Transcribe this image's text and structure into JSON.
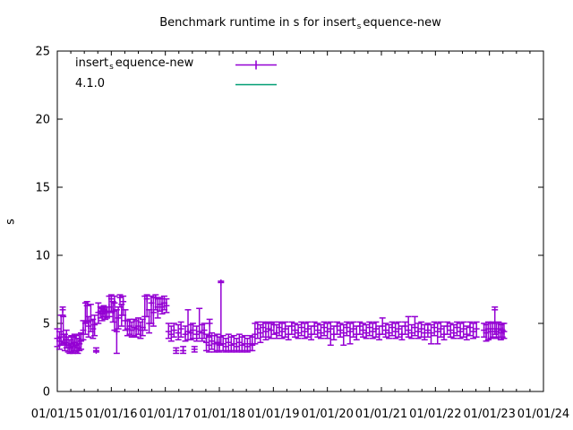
{
  "title": {
    "prefix": "Benchmark runtime in s for insert",
    "subscript": "s",
    "suffix": "equence-new"
  },
  "ylabel": "s",
  "legend": {
    "entries": [
      {
        "prefix": "insert",
        "subscript": "s",
        "suffix": "equence-new",
        "color": "#9400D3",
        "style": "errorbar"
      },
      {
        "prefix": "4.1.0",
        "subscript": "",
        "suffix": "",
        "color": "#009E73",
        "style": "line"
      }
    ]
  },
  "colors": {
    "series": "#9400D3",
    "reference": "#009E73",
    "axis": "#000000",
    "background": "#FFFFFF"
  },
  "chart_data": {
    "type": "scatter",
    "subtype": "yerrorbars",
    "title": "Benchmark runtime in s for insert_sequence-new",
    "xlabel": "",
    "ylabel": "s",
    "grid": false,
    "legend_position": "top-left",
    "xlim": [
      2015,
      2024
    ],
    "ylim": [
      0,
      25
    ],
    "yticks": [
      0,
      5,
      10,
      15,
      20,
      25
    ],
    "x_minor_tick_interval_years": 0.25,
    "xticks": [
      {
        "year": 2015,
        "label": "01/01/15"
      },
      {
        "year": 2016,
        "label": "01/01/16"
      },
      {
        "year": 2017,
        "label": "01/01/17"
      },
      {
        "year": 2018,
        "label": "01/01/18"
      },
      {
        "year": 2019,
        "label": "01/01/19"
      },
      {
        "year": 2020,
        "label": "01/01/20"
      },
      {
        "year": 2021,
        "label": "01/01/21"
      },
      {
        "year": 2022,
        "label": "01/01/22"
      },
      {
        "year": 2023,
        "label": "01/01/23"
      },
      {
        "year": 2024,
        "label": "01/01/24"
      }
    ],
    "series": [
      {
        "name": "insert_sequence-new",
        "color": "#9400D3",
        "style": "yerrorbars",
        "points_format": [
          "x_decimal_year",
          "y_seconds",
          "err_low",
          "err_high"
        ],
        "points": [
          [
            2015.0,
            3.9,
            3.3,
            4.6
          ],
          [
            2015.04,
            3.7,
            3.1,
            4.4
          ],
          [
            2015.07,
            4.0,
            3.4,
            5.6
          ],
          [
            2015.1,
            6.0,
            5.6,
            6.2
          ],
          [
            2015.11,
            4.2,
            3.5,
            5.5
          ],
          [
            2015.14,
            3.6,
            3.0,
            4.2
          ],
          [
            2015.17,
            3.8,
            3.2,
            4.5
          ],
          [
            2015.2,
            3.4,
            2.9,
            4.0
          ],
          [
            2015.23,
            3.2,
            2.8,
            3.8
          ],
          [
            2015.26,
            3.5,
            2.9,
            4.1
          ],
          [
            2015.29,
            3.3,
            2.8,
            4.0
          ],
          [
            2015.32,
            3.6,
            3.0,
            4.2
          ],
          [
            2015.35,
            3.4,
            2.9,
            4.1
          ],
          [
            2015.38,
            3.2,
            2.8,
            3.9
          ],
          [
            2015.41,
            3.5,
            3.0,
            4.2
          ],
          [
            2015.44,
            3.7,
            3.1,
            4.3
          ],
          [
            2015.48,
            4.5,
            3.8,
            5.2
          ],
          [
            2015.52,
            5.0,
            4.2,
            6.5
          ],
          [
            2015.55,
            6.3,
            5.1,
            6.6
          ],
          [
            2015.58,
            4.8,
            4.0,
            5.5
          ],
          [
            2015.62,
            5.2,
            4.4,
            6.4
          ],
          [
            2015.66,
            4.6,
            3.9,
            5.3
          ],
          [
            2015.69,
            4.9,
            4.1,
            5.6
          ],
          [
            2015.72,
            3.0,
            2.9,
            3.2
          ],
          [
            2015.76,
            5.8,
            5.0,
            6.5
          ],
          [
            2015.8,
            5.9,
            5.4,
            6.2
          ],
          [
            2015.83,
            5.7,
            5.2,
            6.1
          ],
          [
            2015.86,
            6.0,
            5.5,
            6.3
          ],
          [
            2015.89,
            5.8,
            5.3,
            6.2
          ],
          [
            2015.92,
            5.9,
            5.4,
            6.2
          ],
          [
            2015.96,
            6.2,
            5.5,
            7.0
          ],
          [
            2016.0,
            6.8,
            5.8,
            7.1
          ],
          [
            2016.03,
            5.9,
            5.1,
            6.6
          ],
          [
            2016.06,
            6.5,
            4.5,
            7.0
          ],
          [
            2016.1,
            4.4,
            2.8,
            6.0
          ],
          [
            2016.13,
            5.4,
            4.6,
            6.2
          ],
          [
            2016.16,
            6.9,
            6.2,
            7.1
          ],
          [
            2016.19,
            5.6,
            4.8,
            6.4
          ],
          [
            2016.22,
            6.6,
            5.6,
            7.0
          ],
          [
            2016.26,
            5.2,
            4.5,
            6.0
          ],
          [
            2016.3,
            4.6,
            4.1,
            5.2
          ],
          [
            2016.34,
            4.8,
            4.2,
            5.3
          ],
          [
            2016.38,
            4.5,
            4.0,
            5.1
          ],
          [
            2016.42,
            4.7,
            4.1,
            5.3
          ],
          [
            2016.46,
            4.6,
            4.0,
            5.2
          ],
          [
            2016.5,
            4.8,
            4.2,
            5.4
          ],
          [
            2016.54,
            4.5,
            3.9,
            5.1
          ],
          [
            2016.58,
            4.7,
            4.1,
            5.3
          ],
          [
            2016.62,
            5.5,
            4.5,
            7.0
          ],
          [
            2016.66,
            6.8,
            5.5,
            7.1
          ],
          [
            2016.7,
            5.0,
            4.3,
            6.0
          ],
          [
            2016.74,
            6.5,
            5.0,
            7.0
          ],
          [
            2016.78,
            5.8,
            4.8,
            6.9
          ],
          [
            2016.82,
            6.9,
            6.0,
            7.1
          ],
          [
            2016.86,
            6.2,
            5.4,
            6.8
          ],
          [
            2016.9,
            6.4,
            5.9,
            6.9
          ],
          [
            2016.94,
            6.2,
            5.7,
            6.8
          ],
          [
            2016.98,
            6.5,
            6.0,
            7.0
          ],
          [
            2017.02,
            6.3,
            5.8,
            6.8
          ],
          [
            2017.06,
            4.4,
            3.9,
            5.0
          ],
          [
            2017.11,
            4.2,
            3.7,
            4.8
          ],
          [
            2017.16,
            4.5,
            4.0,
            5.0
          ],
          [
            2017.2,
            3.0,
            2.8,
            3.2
          ],
          [
            2017.24,
            4.3,
            3.8,
            4.9
          ],
          [
            2017.29,
            4.6,
            4.0,
            5.1
          ],
          [
            2017.33,
            3.0,
            2.8,
            3.3
          ],
          [
            2017.37,
            4.2,
            3.7,
            4.8
          ],
          [
            2017.42,
            4.4,
            3.8,
            6.0
          ],
          [
            2017.47,
            4.3,
            3.8,
            4.9
          ],
          [
            2017.51,
            4.5,
            3.9,
            5.0
          ],
          [
            2017.54,
            3.1,
            2.9,
            3.3
          ],
          [
            2017.58,
            4.2,
            3.7,
            4.8
          ],
          [
            2017.63,
            4.4,
            3.9,
            6.1
          ],
          [
            2017.68,
            4.3,
            3.7,
            4.9
          ],
          [
            2017.72,
            4.5,
            3.9,
            5.0
          ],
          [
            2017.76,
            3.6,
            3.0,
            4.2
          ],
          [
            2017.81,
            3.4,
            2.9,
            4.0
          ],
          [
            2017.82,
            5.0,
            4.1,
            5.3
          ],
          [
            2017.86,
            3.7,
            3.1,
            4.3
          ],
          [
            2017.91,
            3.5,
            2.9,
            4.1
          ],
          [
            2017.96,
            3.6,
            3.0,
            4.2
          ],
          [
            2018.0,
            3.4,
            2.9,
            4.0
          ],
          [
            2018.03,
            8.0,
            3.5,
            8.1
          ],
          [
            2018.07,
            3.5,
            3.0,
            4.1
          ],
          [
            2018.12,
            3.3,
            2.9,
            3.9
          ],
          [
            2018.17,
            3.6,
            3.0,
            4.2
          ],
          [
            2018.22,
            3.4,
            2.9,
            4.0
          ],
          [
            2018.27,
            3.5,
            3.0,
            4.1
          ],
          [
            2018.32,
            3.3,
            2.9,
            3.9
          ],
          [
            2018.37,
            3.6,
            3.0,
            4.2
          ],
          [
            2018.42,
            3.4,
            2.9,
            4.0
          ],
          [
            2018.47,
            3.5,
            3.0,
            4.1
          ],
          [
            2018.52,
            3.3,
            2.9,
            3.9
          ],
          [
            2018.57,
            3.5,
            3.0,
            4.1
          ],
          [
            2018.61,
            3.4,
            3.0,
            4.0
          ],
          [
            2018.66,
            4.2,
            3.5,
            5.0
          ],
          [
            2018.71,
            4.6,
            3.9,
            5.1
          ],
          [
            2018.76,
            4.3,
            3.6,
            4.9
          ],
          [
            2018.81,
            4.7,
            4.0,
            5.1
          ],
          [
            2018.86,
            4.4,
            3.8,
            5.0
          ],
          [
            2018.91,
            4.6,
            4.0,
            5.1
          ],
          [
            2018.96,
            4.5,
            3.9,
            5.0
          ],
          [
            2019.01,
            4.9,
            4.2,
            5.1
          ],
          [
            2019.06,
            4.3,
            3.9,
            4.9
          ],
          [
            2019.11,
            4.7,
            4.1,
            5.1
          ],
          [
            2019.16,
            4.4,
            3.9,
            5.0
          ],
          [
            2019.22,
            4.6,
            4.0,
            5.1
          ],
          [
            2019.28,
            4.2,
            3.8,
            4.8
          ],
          [
            2019.34,
            4.8,
            4.2,
            5.1
          ],
          [
            2019.4,
            4.5,
            4.0,
            5.0
          ],
          [
            2019.46,
            4.3,
            3.9,
            4.9
          ],
          [
            2019.52,
            4.7,
            4.1,
            5.1
          ],
          [
            2019.58,
            4.4,
            3.9,
            5.0
          ],
          [
            2019.64,
            4.6,
            4.0,
            5.1
          ],
          [
            2019.7,
            4.2,
            3.8,
            4.8
          ],
          [
            2019.76,
            4.8,
            4.2,
            5.1
          ],
          [
            2019.82,
            4.5,
            4.0,
            5.0
          ],
          [
            2019.88,
            4.3,
            3.9,
            4.9
          ],
          [
            2019.94,
            4.7,
            4.1,
            5.1
          ],
          [
            2020.0,
            4.4,
            3.9,
            5.0
          ],
          [
            2020.06,
            4.6,
            3.4,
            5.1
          ],
          [
            2020.12,
            4.2,
            3.8,
            4.8
          ],
          [
            2020.18,
            4.8,
            4.2,
            5.1
          ],
          [
            2020.24,
            4.5,
            4.0,
            5.0
          ],
          [
            2020.3,
            4.3,
            3.4,
            4.9
          ],
          [
            2020.36,
            4.7,
            4.1,
            5.1
          ],
          [
            2020.42,
            4.4,
            3.5,
            5.0
          ],
          [
            2020.48,
            4.6,
            4.0,
            5.1
          ],
          [
            2020.54,
            4.2,
            3.8,
            4.8
          ],
          [
            2020.6,
            4.8,
            4.2,
            5.1
          ],
          [
            2020.66,
            4.5,
            4.0,
            5.0
          ],
          [
            2020.72,
            4.3,
            3.9,
            4.9
          ],
          [
            2020.78,
            4.7,
            4.1,
            5.1
          ],
          [
            2020.84,
            4.4,
            3.9,
            5.0
          ],
          [
            2020.9,
            4.6,
            4.0,
            5.1
          ],
          [
            2020.96,
            4.2,
            3.8,
            4.8
          ],
          [
            2021.02,
            4.8,
            4.2,
            5.4
          ],
          [
            2021.08,
            4.5,
            4.0,
            5.0
          ],
          [
            2021.14,
            4.3,
            3.9,
            4.9
          ],
          [
            2021.2,
            4.7,
            4.1,
            5.1
          ],
          [
            2021.26,
            4.4,
            3.9,
            5.0
          ],
          [
            2021.32,
            4.6,
            4.0,
            5.1
          ],
          [
            2021.38,
            4.2,
            3.8,
            4.8
          ],
          [
            2021.44,
            4.8,
            4.2,
            5.1
          ],
          [
            2021.5,
            4.5,
            4.0,
            5.5
          ],
          [
            2021.56,
            4.3,
            3.9,
            4.9
          ],
          [
            2021.62,
            4.7,
            4.1,
            5.5
          ],
          [
            2021.68,
            4.4,
            3.9,
            5.0
          ],
          [
            2021.74,
            4.6,
            4.0,
            5.1
          ],
          [
            2021.8,
            4.3,
            3.8,
            4.9
          ],
          [
            2021.86,
            4.5,
            4.0,
            5.0
          ],
          [
            2021.92,
            4.3,
            3.5,
            4.9
          ],
          [
            2021.98,
            4.7,
            4.1,
            5.1
          ],
          [
            2022.04,
            4.4,
            3.5,
            5.0
          ],
          [
            2022.1,
            4.6,
            4.0,
            5.1
          ],
          [
            2022.16,
            4.2,
            3.8,
            4.8
          ],
          [
            2022.22,
            4.8,
            4.2,
            5.1
          ],
          [
            2022.28,
            4.5,
            4.0,
            5.0
          ],
          [
            2022.34,
            4.3,
            3.9,
            4.9
          ],
          [
            2022.4,
            4.7,
            4.1,
            5.1
          ],
          [
            2022.46,
            4.4,
            3.9,
            5.0
          ],
          [
            2022.52,
            4.6,
            4.0,
            5.1
          ],
          [
            2022.58,
            4.2,
            3.8,
            4.8
          ],
          [
            2022.64,
            4.7,
            4.1,
            5.1
          ],
          [
            2022.7,
            4.4,
            3.9,
            5.0
          ],
          [
            2022.76,
            4.6,
            4.0,
            5.1
          ],
          [
            2022.9,
            4.5,
            4.0,
            5.0
          ],
          [
            2022.94,
            4.3,
            3.7,
            4.9
          ],
          [
            2022.98,
            4.6,
            3.8,
            5.1
          ],
          [
            2023.02,
            4.4,
            3.9,
            5.0
          ],
          [
            2023.06,
            4.6,
            4.0,
            5.1
          ],
          [
            2023.1,
            6.0,
            4.2,
            6.2
          ],
          [
            2023.13,
            4.4,
            3.9,
            5.0
          ],
          [
            2023.17,
            4.6,
            4.0,
            5.1
          ],
          [
            2023.21,
            4.3,
            3.8,
            4.9
          ],
          [
            2023.24,
            4.5,
            4.0,
            5.0
          ],
          [
            2023.27,
            4.4,
            3.9,
            5.0
          ]
        ]
      },
      {
        "name": "4.1.0",
        "color": "#009E73",
        "style": "line",
        "points": []
      }
    ]
  }
}
